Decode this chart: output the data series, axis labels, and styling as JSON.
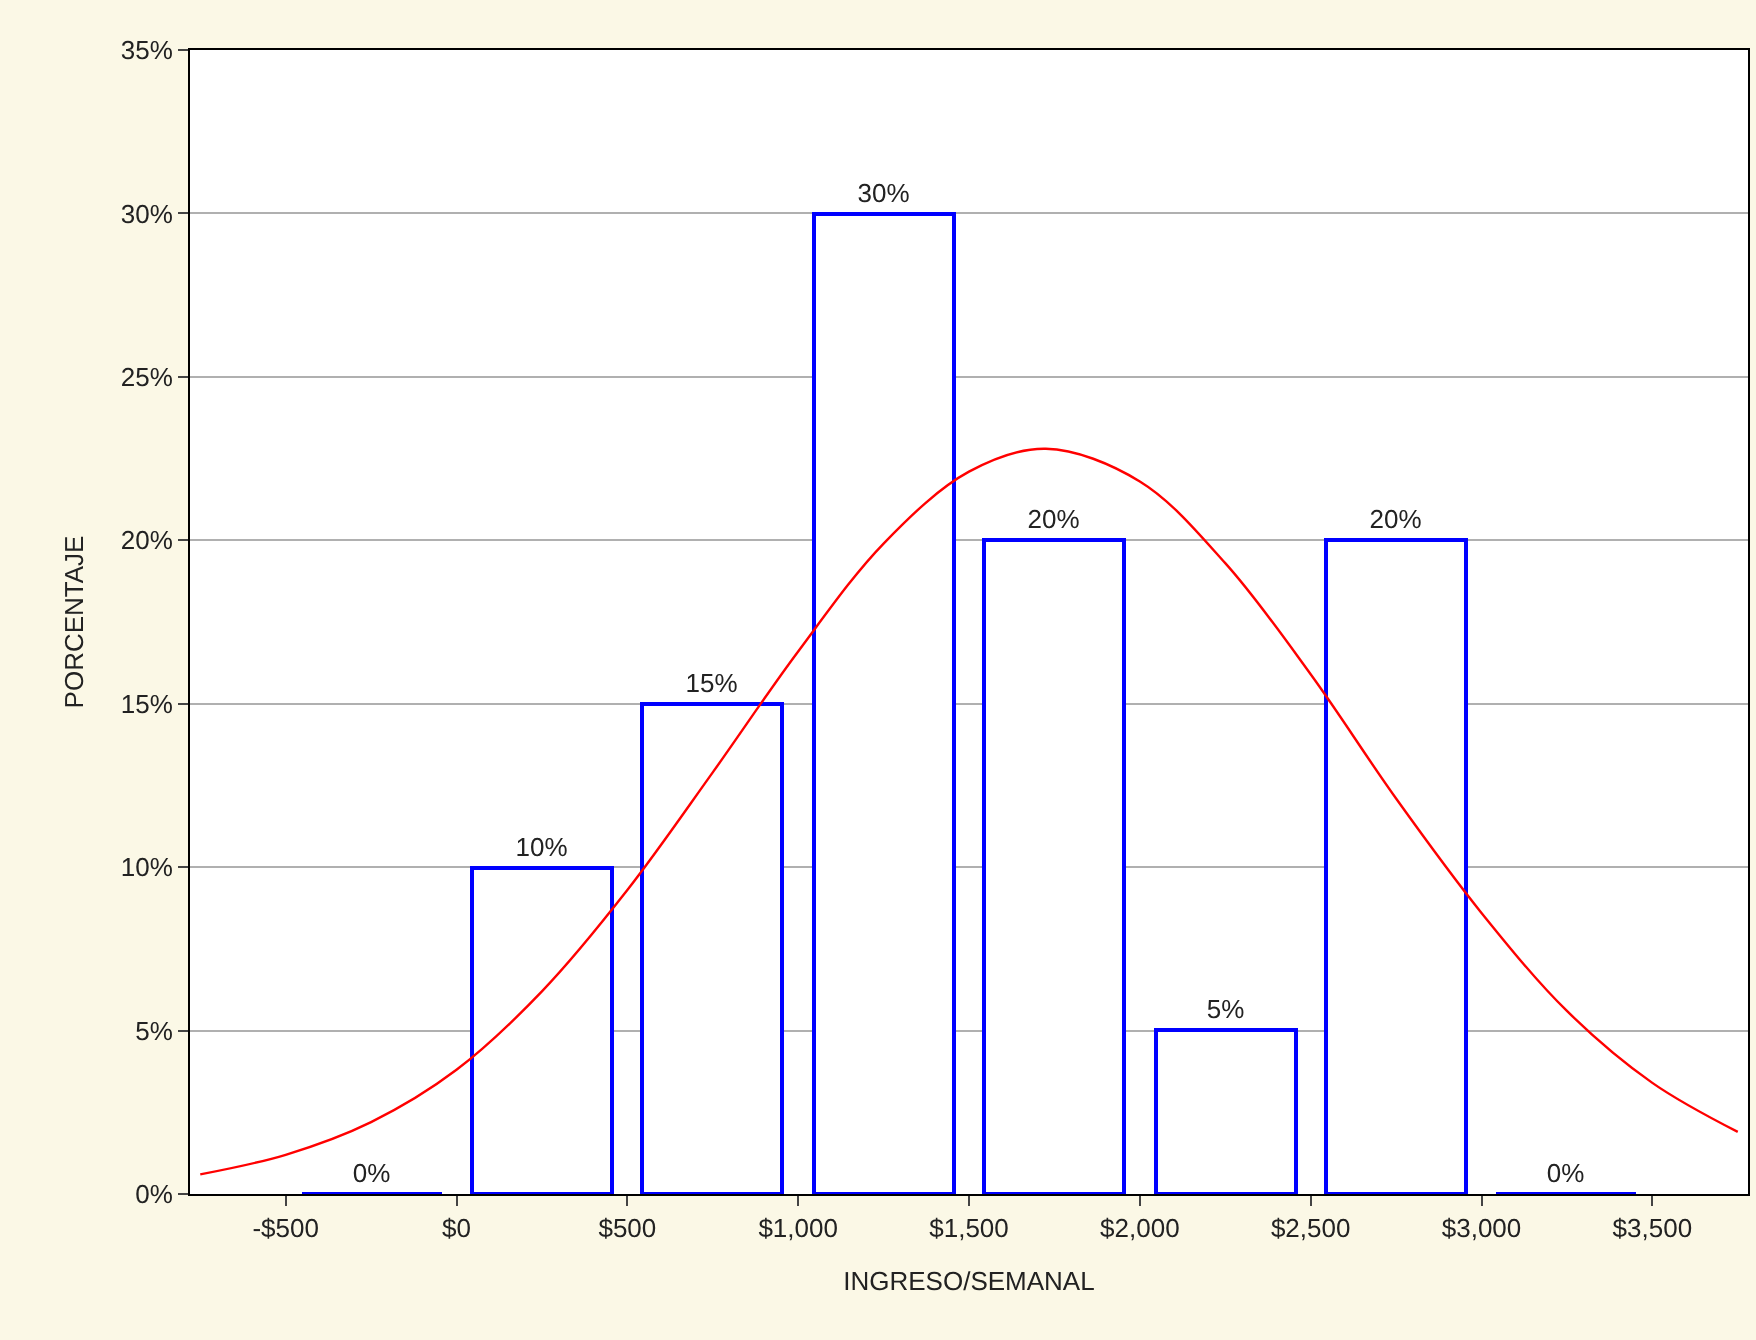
{
  "chart_data": {
    "type": "histogram",
    "xlabel": "INGRESO/SEMANAL",
    "ylabel": "PORCENTAJE",
    "bins": [
      -500,
      0,
      500,
      1000,
      1500,
      2000,
      2500,
      3000,
      3500
    ],
    "values": [
      0,
      10,
      15,
      30,
      20,
      5,
      20,
      0
    ],
    "value_labels": [
      "0%",
      "10%",
      "15%",
      "30%",
      "20%",
      "5%",
      "20%",
      "0%"
    ],
    "color": "#0000ff",
    "series": [
      {
        "type": "line",
        "color": "#ff0000",
        "x": [
          -750,
          -500,
          -250,
          0,
          250,
          500,
          750,
          1000,
          1250,
          1500,
          1725,
          2000,
          2250,
          2500,
          2750,
          3000,
          3250,
          3500,
          3750
        ],
        "values": [
          0.6,
          1.2,
          2.2,
          3.8,
          6.2,
          9.3,
          12.9,
          16.6,
          19.9,
          22.1,
          22.8,
          21.8,
          19.3,
          15.9,
          12.1,
          8.6,
          5.6,
          3.4,
          1.9
        ]
      }
    ],
    "xlim": [
      -780,
      3780
    ],
    "xticks": [
      {
        "value": -500,
        "label": "-$500"
      },
      {
        "value": 0,
        "label": "$0"
      },
      {
        "value": 500,
        "label": "$500"
      },
      {
        "value": 1000,
        "label": "$1,000"
      },
      {
        "value": 1500,
        "label": "$1,500"
      },
      {
        "value": 2000,
        "label": "$2,000"
      },
      {
        "value": 2500,
        "label": "$2,500"
      },
      {
        "value": 3000,
        "label": "$3,000"
      },
      {
        "value": 3500,
        "label": "$3,500"
      }
    ],
    "ylim": [
      0,
      35
    ],
    "yticks": [
      {
        "value": 0,
        "label": "0%"
      },
      {
        "value": 5,
        "label": "5%"
      },
      {
        "value": 10,
        "label": "10%"
      },
      {
        "value": 15,
        "label": "15%"
      },
      {
        "value": 20,
        "label": "20%"
      },
      {
        "value": 25,
        "label": "25%"
      },
      {
        "value": 30,
        "label": "30%"
      },
      {
        "value": 35,
        "label": "35%"
      }
    ],
    "grid": "y"
  }
}
